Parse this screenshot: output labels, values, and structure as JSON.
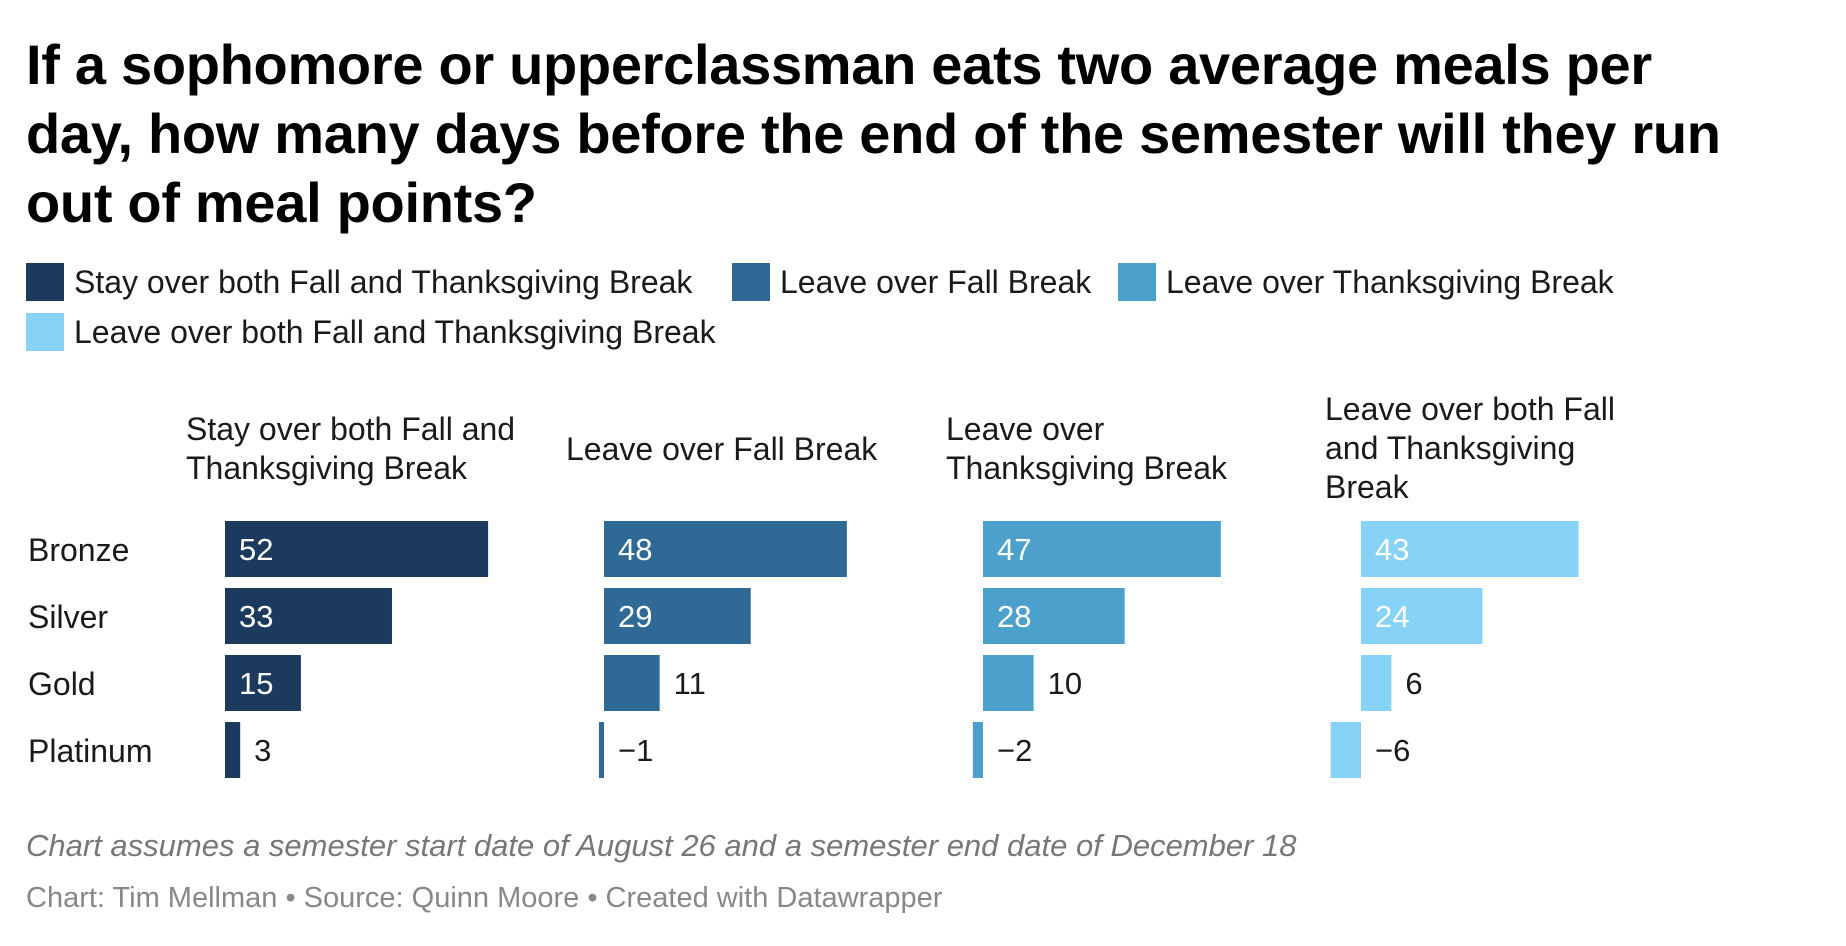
{
  "title": "If a sophomore or upperclassman eats two average meals per day, how many days before the end of the semester will they run out of meal points?",
  "legend": [
    {
      "label": "Stay over both Fall and Thanksgiving Break",
      "color": "#1b3a5e"
    },
    {
      "label": "Leave over Fall Break",
      "color": "#2f6a96"
    },
    {
      "label": "Leave over Thanksgiving Break",
      "color": "#4ba0cc"
    },
    {
      "label": "Leave over both Fall and Thanksgiving Break",
      "color": "#86d3f7"
    }
  ],
  "chart_data": {
    "type": "bar",
    "categories": [
      "Bronze",
      "Silver",
      "Gold",
      "Platinum"
    ],
    "series": [
      {
        "name": "Stay over both Fall and Thanksgiving Break",
        "color": "#1b3a5e",
        "values": [
          52,
          33,
          15,
          3
        ]
      },
      {
        "name": "Leave over Fall Break",
        "color": "#2f6a96",
        "values": [
          48,
          29,
          11,
          -1
        ]
      },
      {
        "name": "Leave over Thanksgiving Break",
        "color": "#4ba0cc",
        "values": [
          47,
          28,
          10,
          -2
        ]
      },
      {
        "name": "Leave over both Fall and Thanksgiving Break",
        "color": "#86d3f7",
        "values": [
          43,
          24,
          6,
          -6
        ]
      }
    ],
    "value_labels": [
      [
        "52",
        "33",
        "15",
        "3"
      ],
      [
        "48",
        "29",
        "11",
        "−1"
      ],
      [
        "47",
        "28",
        "10",
        "−2"
      ],
      [
        "43",
        "24",
        "6",
        "−6"
      ]
    ],
    "orientation": "horizontal",
    "layout": "small-multiples"
  },
  "note": "Chart assumes a semester start date of August 26 and a semester end date of December 18",
  "credits": "Chart: Tim Mellman • Source: Quinn Moore • Created with Datawrapper"
}
